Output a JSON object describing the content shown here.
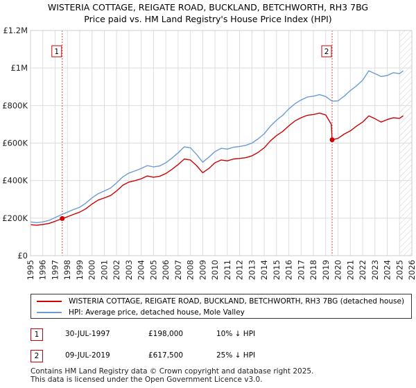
{
  "chart_data": {
    "type": "line",
    "title": "WISTERIA COTTAGE, REIGATE ROAD, BUCKLAND, BETCHWORTH, RH3 7BG",
    "subtitle": "Price paid vs. HM Land Registry's House Price Index (HPI)",
    "xlim": [
      1995,
      2026
    ],
    "ylim": [
      0,
      1200000
    ],
    "y_ticks": [
      0,
      200000,
      400000,
      600000,
      800000,
      1000000,
      1200000
    ],
    "y_tick_labels": [
      "£0",
      "£200K",
      "£400K",
      "£600K",
      "£800K",
      "£1M",
      "£1.2M"
    ],
    "x_tick_labels": [
      "1995",
      "1996",
      "1997",
      "1998",
      "1999",
      "2000",
      "2001",
      "2002",
      "2003",
      "2004",
      "2005",
      "2006",
      "2007",
      "2008",
      "2009",
      "2010",
      "2011",
      "2012",
      "2013",
      "2014",
      "2015",
      "2016",
      "2017",
      "2018",
      "2019",
      "2020",
      "2021",
      "2022",
      "2023",
      "2024",
      "2025",
      "2026"
    ],
    "grid": true,
    "hatched_from": 2025.0,
    "series": [
      {
        "name": "WISTERIA COTTAGE, REIGATE ROAD, BUCKLAND, BETCHWORTH, RH3 7BG (detached house)",
        "color": "#cc0000",
        "points": [
          [
            1995.0,
            165000
          ],
          [
            1995.5,
            162000
          ],
          [
            1996.0,
            166000
          ],
          [
            1996.5,
            172000
          ],
          [
            1997.0,
            183000
          ],
          [
            1997.58,
            198000
          ],
          [
            1998.0,
            207000
          ],
          [
            1998.5,
            220000
          ],
          [
            1999.0,
            232000
          ],
          [
            1999.5,
            250000
          ],
          [
            2000.0,
            275000
          ],
          [
            2000.5,
            296000
          ],
          [
            2001.0,
            308000
          ],
          [
            2001.5,
            320000
          ],
          [
            2002.0,
            345000
          ],
          [
            2002.5,
            375000
          ],
          [
            2003.0,
            392000
          ],
          [
            2003.5,
            400000
          ],
          [
            2004.0,
            410000
          ],
          [
            2004.5,
            425000
          ],
          [
            2005.0,
            418000
          ],
          [
            2005.5,
            423000
          ],
          [
            2006.0,
            438000
          ],
          [
            2006.5,
            460000
          ],
          [
            2007.0,
            485000
          ],
          [
            2007.5,
            515000
          ],
          [
            2008.0,
            510000
          ],
          [
            2008.5,
            480000
          ],
          [
            2009.0,
            442000
          ],
          [
            2009.5,
            465000
          ],
          [
            2010.0,
            495000
          ],
          [
            2010.5,
            510000
          ],
          [
            2011.0,
            505000
          ],
          [
            2011.5,
            515000
          ],
          [
            2012.0,
            518000
          ],
          [
            2012.5,
            522000
          ],
          [
            2013.0,
            532000
          ],
          [
            2013.5,
            550000
          ],
          [
            2014.0,
            575000
          ],
          [
            2014.5,
            612000
          ],
          [
            2015.0,
            640000
          ],
          [
            2015.5,
            662000
          ],
          [
            2016.0,
            692000
          ],
          [
            2016.5,
            718000
          ],
          [
            2017.0,
            735000
          ],
          [
            2017.5,
            748000
          ],
          [
            2018.0,
            752000
          ],
          [
            2018.5,
            760000
          ],
          [
            2019.0,
            750000
          ],
          [
            2019.45,
            700000
          ],
          [
            2019.52,
            617500
          ],
          [
            2020.0,
            625000
          ],
          [
            2020.5,
            648000
          ],
          [
            2021.0,
            665000
          ],
          [
            2021.5,
            690000
          ],
          [
            2022.0,
            712000
          ],
          [
            2022.5,
            745000
          ],
          [
            2023.0,
            730000
          ],
          [
            2023.5,
            712000
          ],
          [
            2024.0,
            725000
          ],
          [
            2024.5,
            735000
          ],
          [
            2025.0,
            732000
          ],
          [
            2025.3,
            745000
          ]
        ]
      },
      {
        "name": "HPI: Average price, detached house, Mole Valley",
        "color": "#6b9bd2",
        "points": [
          [
            1995.0,
            180000
          ],
          [
            1995.5,
            176000
          ],
          [
            1996.0,
            180000
          ],
          [
            1996.5,
            188000
          ],
          [
            1997.0,
            203000
          ],
          [
            1997.58,
            220000
          ],
          [
            1998.0,
            232000
          ],
          [
            1998.5,
            246000
          ],
          [
            1999.0,
            258000
          ],
          [
            1999.5,
            280000
          ],
          [
            2000.0,
            308000
          ],
          [
            2000.5,
            330000
          ],
          [
            2001.0,
            345000
          ],
          [
            2001.5,
            360000
          ],
          [
            2002.0,
            388000
          ],
          [
            2002.5,
            420000
          ],
          [
            2003.0,
            440000
          ],
          [
            2003.5,
            452000
          ],
          [
            2004.0,
            465000
          ],
          [
            2004.5,
            480000
          ],
          [
            2005.0,
            473000
          ],
          [
            2005.5,
            478000
          ],
          [
            2006.0,
            495000
          ],
          [
            2006.5,
            520000
          ],
          [
            2007.0,
            548000
          ],
          [
            2007.5,
            580000
          ],
          [
            2008.0,
            575000
          ],
          [
            2008.5,
            540000
          ],
          [
            2009.0,
            498000
          ],
          [
            2009.5,
            525000
          ],
          [
            2010.0,
            555000
          ],
          [
            2010.5,
            572000
          ],
          [
            2011.0,
            568000
          ],
          [
            2011.5,
            578000
          ],
          [
            2012.0,
            582000
          ],
          [
            2012.5,
            588000
          ],
          [
            2013.0,
            600000
          ],
          [
            2013.5,
            622000
          ],
          [
            2014.0,
            650000
          ],
          [
            2014.5,
            690000
          ],
          [
            2015.0,
            722000
          ],
          [
            2015.5,
            748000
          ],
          [
            2016.0,
            782000
          ],
          [
            2016.5,
            810000
          ],
          [
            2017.0,
            830000
          ],
          [
            2017.5,
            845000
          ],
          [
            2018.0,
            850000
          ],
          [
            2018.5,
            858000
          ],
          [
            2019.0,
            848000
          ],
          [
            2019.52,
            823000
          ],
          [
            2020.0,
            825000
          ],
          [
            2020.5,
            850000
          ],
          [
            2021.0,
            880000
          ],
          [
            2021.5,
            905000
          ],
          [
            2022.0,
            935000
          ],
          [
            2022.5,
            985000
          ],
          [
            2023.0,
            970000
          ],
          [
            2023.5,
            955000
          ],
          [
            2024.0,
            960000
          ],
          [
            2024.5,
            975000
          ],
          [
            2025.0,
            970000
          ],
          [
            2025.3,
            985000
          ]
        ]
      }
    ],
    "annotations": [
      {
        "label": "1",
        "x": 1997.58,
        "y": 198000
      },
      {
        "label": "2",
        "x": 2019.52,
        "y": 617500
      }
    ]
  },
  "sales": [
    {
      "num": "1",
      "date": "30-JUL-1997",
      "price": "£198,000",
      "hpi": "10% ↓ HPI"
    },
    {
      "num": "2",
      "date": "09-JUL-2019",
      "price": "£617,500",
      "hpi": "25% ↓ HPI"
    }
  ],
  "footer": {
    "line1": "Contains HM Land Registry data © Crown copyright and database right 2025.",
    "line2": "This data is licensed under the Open Government Licence v3.0."
  },
  "colors": {
    "property": "#cc0000",
    "hpi": "#6b9bd2",
    "grid": "#dddddd"
  }
}
